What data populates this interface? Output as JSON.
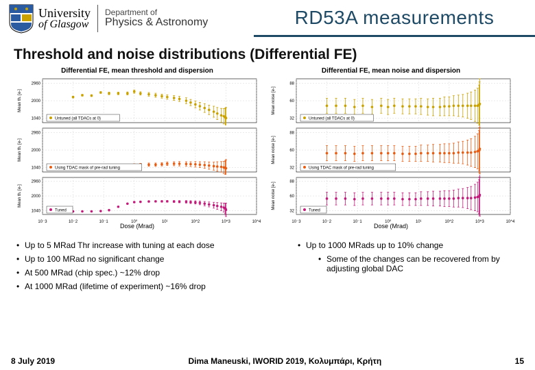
{
  "header": {
    "university_top": "University",
    "university_bottom": "of Glasgow",
    "dept_top": "Department of",
    "dept_bottom": "Physics & Astronomy",
    "title": "RD53A measurements",
    "title_color": "#1e4a66"
  },
  "subtitle": "Threshold and noise distributions (Differential FE)",
  "chart_left": {
    "title": "Differential FE, mean threshold and dispersion",
    "xlabel": "Dose (Mrad)",
    "ylabel": "Mean th. [e-]",
    "panels": [
      {
        "color": "#c9a200",
        "legend": "Untuned (all TDACs at 0)",
        "y": [
          2200,
          2300,
          2280,
          2450,
          2400,
          2400,
          2400,
          2500,
          2400,
          2350,
          2300,
          2250,
          2200,
          2150,
          2100,
          2000,
          1900,
          1800,
          1700,
          1600,
          1500,
          1400,
          1300,
          1200,
          1150,
          1100,
          1080,
          1050
        ],
        "err": [
          50,
          50,
          50,
          50,
          70,
          70,
          80,
          90,
          90,
          100,
          110,
          110,
          120,
          130,
          140,
          160,
          170,
          190,
          210,
          240,
          260,
          300,
          330,
          380,
          420,
          480,
          520,
          580
        ]
      },
      {
        "color": "#e85c12",
        "legend": "Using TDAC mask of pre-rad tuning",
        "y": [
          1100,
          1100,
          1120,
          1150,
          1120,
          1130,
          1140,
          1170,
          1190,
          1200,
          1200,
          1220,
          1250,
          1250,
          1250,
          1240,
          1230,
          1220,
          1200,
          1180,
          1150,
          1120,
          1100,
          1080,
          1050,
          1030,
          1010,
          1000
        ],
        "err": [
          40,
          40,
          40,
          40,
          50,
          60,
          70,
          80,
          80,
          90,
          90,
          90,
          100,
          110,
          120,
          120,
          130,
          150,
          160,
          180,
          200,
          220,
          260,
          290,
          330,
          370,
          420,
          480
        ]
      },
      {
        "color": "#c21a7a",
        "legend": "Tuned",
        "y": [
          1000,
          1000,
          1000,
          1020,
          1080,
          1300,
          1500,
          1600,
          1620,
          1640,
          1650,
          1650,
          1650,
          1640,
          1630,
          1620,
          1600,
          1580,
          1550,
          1500,
          1450,
          1400,
          1350,
          1300,
          1250,
          1200,
          1150,
          1100
        ],
        "err": [
          20,
          20,
          20,
          22,
          25,
          30,
          35,
          38,
          40,
          42,
          45,
          50,
          55,
          60,
          70,
          80,
          90,
          100,
          120,
          140,
          160,
          190,
          220,
          250,
          290,
          330,
          380,
          430
        ]
      }
    ],
    "x": [
      0.01,
      0.02,
      0.04,
      0.08,
      0.15,
      0.3,
      0.6,
      1,
      1.6,
      3,
      5,
      8,
      12,
      20,
      30,
      50,
      70,
      100,
      140,
      200,
      280,
      400,
      520,
      700,
      850,
      950,
      980,
      1000
    ],
    "ylim": [
      800,
      3200
    ],
    "xlim": [
      0.001,
      10000
    ],
    "grid_color": "#cccccc",
    "bg": "#ffffff"
  },
  "chart_right": {
    "title": "Differential FE, mean noise and dispersion",
    "xlabel": "Dose (Mrad)",
    "ylabel": "Mean noise [e-]",
    "panels": [
      {
        "color": "#c9a200",
        "legend": "Untuned (all TDACs at 0)",
        "y": [
          52,
          52,
          52,
          50,
          52,
          50,
          52,
          50,
          52,
          51,
          51,
          51,
          51,
          50,
          50,
          50,
          51,
          51,
          52,
          52,
          52,
          52,
          52,
          52,
          52,
          53,
          54,
          55
        ],
        "err": [
          12,
          12,
          12,
          12,
          12,
          12,
          12,
          12,
          12,
          12,
          12,
          12,
          13,
          13,
          14,
          14,
          15,
          15,
          16,
          17,
          18,
          20,
          22,
          25,
          28,
          32,
          36,
          40
        ]
      },
      {
        "color": "#e85c12",
        "legend": "Using TDAC mask of pre-rad tuning",
        "y": [
          55,
          55,
          55,
          54,
          55,
          55,
          55,
          55,
          55,
          54,
          54,
          54,
          55,
          55,
          55,
          55,
          55,
          55,
          55,
          56,
          56,
          56,
          56,
          57,
          58,
          59,
          60,
          62
        ],
        "err": [
          12,
          12,
          12,
          12,
          12,
          12,
          12,
          12,
          12,
          12,
          12,
          12,
          13,
          13,
          14,
          14,
          15,
          15,
          16,
          17,
          18,
          20,
          22,
          25,
          28,
          32,
          36,
          40
        ]
      },
      {
        "color": "#c21a7a",
        "legend": "Tuned",
        "y": [
          55,
          55,
          55,
          54,
          55,
          55,
          55,
          55,
          55,
          54,
          54,
          54,
          55,
          55,
          55,
          55,
          55,
          55,
          55,
          56,
          56,
          56,
          56,
          57,
          58,
          59,
          60,
          62
        ],
        "err": [
          12,
          12,
          12,
          12,
          12,
          12,
          12,
          12,
          12,
          12,
          12,
          12,
          13,
          13,
          14,
          14,
          15,
          15,
          16,
          17,
          18,
          20,
          22,
          25,
          28,
          32,
          36,
          40
        ]
      }
    ],
    "x": [
      0.01,
      0.02,
      0.04,
      0.08,
      0.15,
      0.3,
      0.6,
      1,
      1.6,
      3,
      5,
      8,
      12,
      20,
      30,
      50,
      70,
      100,
      140,
      200,
      280,
      400,
      520,
      700,
      850,
      950,
      980,
      1000
    ],
    "ylim": [
      25,
      95
    ],
    "xlim": [
      0.001,
      10000
    ],
    "grid_color": "#cccccc",
    "bg": "#ffffff"
  },
  "bullets_left": [
    "Up to 5 MRad Thr increase with tuning at each dose",
    "Up to 100 MRad no significant change",
    "At 500 MRad (chip spec.) ~12% drop",
    "At 1000 MRad (lifetime of experiment) ~16% drop"
  ],
  "bullets_right": [
    "Up to 1000 MRads up to 10% change"
  ],
  "bullets_right_nested": [
    "Some of the changes can be recovered from by adjusting global DAC"
  ],
  "footer": {
    "date": "8 July 2019",
    "center": "Dima Maneuski, IWORID 2019, Κολυμπάρι, Κρήτη",
    "page": "15"
  }
}
